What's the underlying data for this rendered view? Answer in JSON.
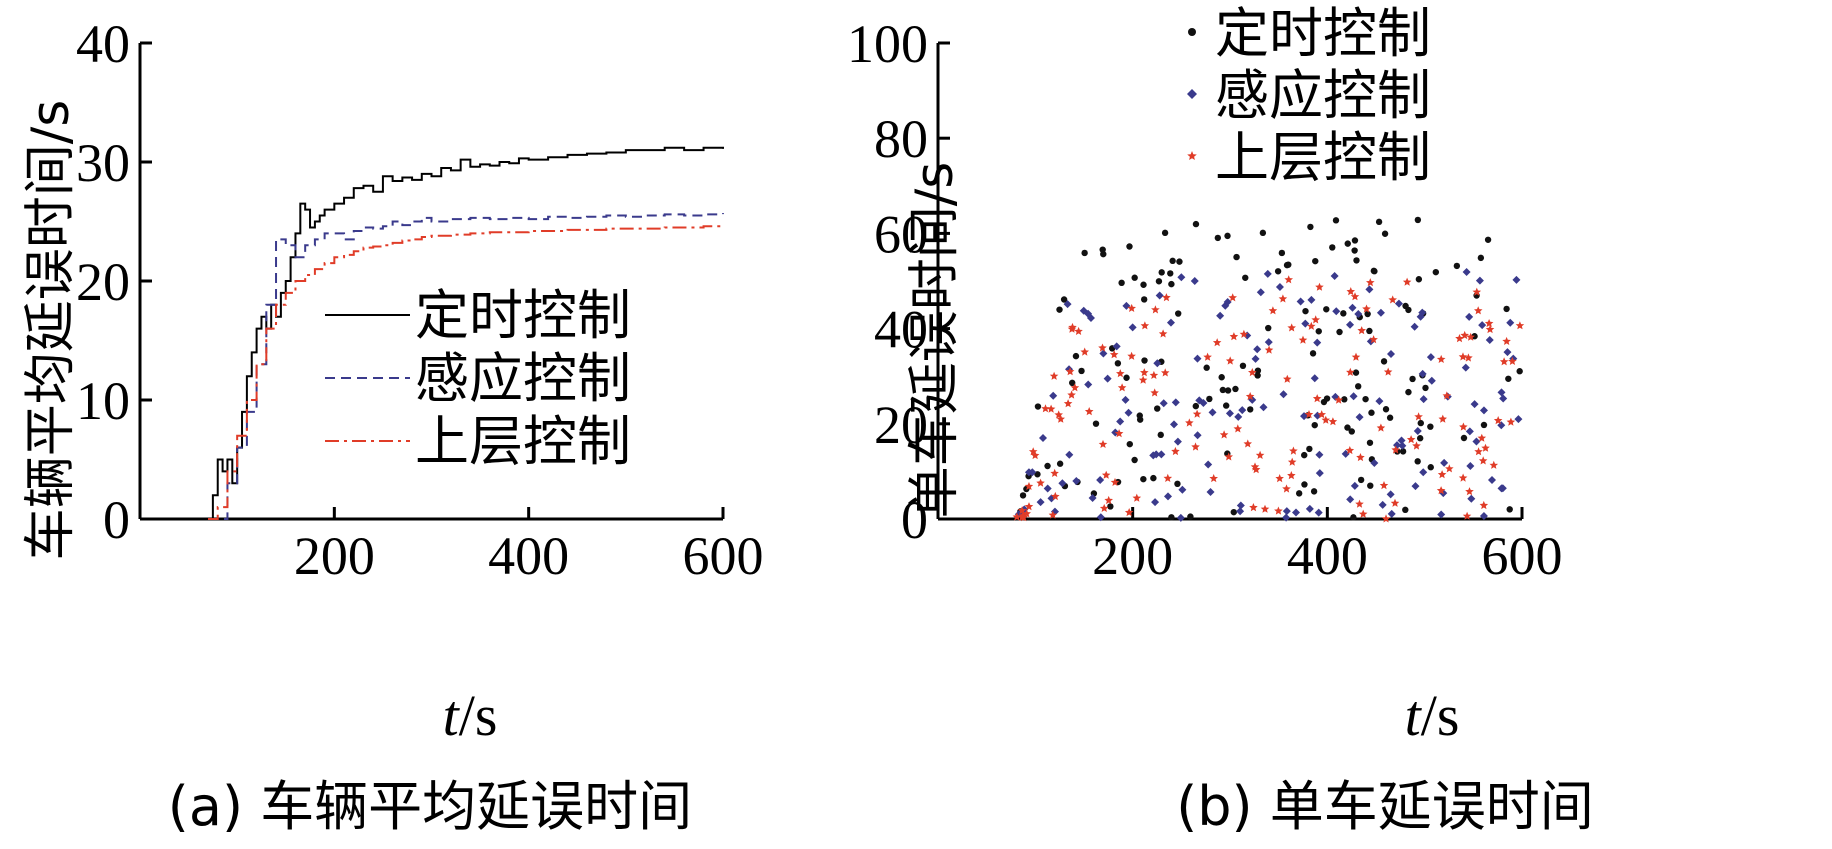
{
  "chart_data": [
    {
      "id": "a",
      "type": "line",
      "caption": "(a) 车辆平均延误时间",
      "xlabel_italic": "t",
      "xlabel_unit": "/s",
      "ylabel": "车辆平均延误时间/s",
      "xlim": [
        0,
        600
      ],
      "ylim": [
        0,
        40
      ],
      "xticks": [
        200,
        400,
        600
      ],
      "yticks": [
        0,
        10,
        20,
        30,
        40
      ],
      "legend_position": "center-right",
      "series": [
        {
          "name": "定时控制",
          "color": "#000000",
          "style": "solid",
          "x": [
            70,
            75,
            80,
            85,
            90,
            95,
            100,
            105,
            110,
            115,
            120,
            125,
            130,
            135,
            140,
            145,
            150,
            155,
            160,
            165,
            170,
            175,
            180,
            185,
            190,
            200,
            210,
            220,
            230,
            240,
            250,
            260,
            270,
            280,
            290,
            300,
            310,
            320,
            330,
            340,
            350,
            360,
            370,
            380,
            390,
            400,
            420,
            440,
            460,
            480,
            500,
            520,
            540,
            560,
            580,
            600
          ],
          "y": [
            0,
            2,
            5,
            4,
            5,
            3,
            6,
            9,
            12,
            14,
            16,
            17,
            16,
            18,
            17,
            19,
            20,
            22,
            24,
            26.5,
            26,
            24.5,
            25,
            25.5,
            26,
            26.5,
            27,
            27.8,
            28,
            27.5,
            28.8,
            28.4,
            28.7,
            28.5,
            29,
            28.8,
            29.5,
            29.3,
            30.2,
            29.6,
            29.8,
            29.7,
            30,
            29.9,
            30.3,
            30.2,
            30.4,
            30.6,
            30.7,
            30.8,
            31,
            31,
            31.2,
            31,
            31.2,
            31.1
          ]
        },
        {
          "name": "感应控制",
          "color": "#3a3a8c",
          "style": "dashed",
          "x": [
            70,
            80,
            90,
            100,
            110,
            120,
            130,
            140,
            150,
            160,
            170,
            180,
            190,
            200,
            210,
            220,
            230,
            240,
            250,
            260,
            270,
            280,
            290,
            300,
            320,
            340,
            360,
            380,
            400,
            420,
            440,
            460,
            480,
            500,
            520,
            540,
            560,
            580,
            600
          ],
          "y": [
            0,
            0,
            3,
            6,
            9,
            13,
            18,
            23.5,
            23,
            22,
            23,
            23.5,
            24,
            24,
            23.5,
            24.2,
            24.5,
            24.4,
            24.6,
            25,
            24.7,
            25,
            25.3,
            25,
            25.2,
            25.3,
            25.2,
            25.3,
            25.2,
            25.4,
            25.3,
            25.4,
            25.5,
            25.4,
            25.5,
            25.6,
            25.5,
            25.6,
            25.7
          ]
        },
        {
          "name": "上层控制",
          "color": "#e03c28",
          "style": "dashdot",
          "x": [
            70,
            80,
            90,
            100,
            110,
            120,
            130,
            140,
            150,
            160,
            170,
            180,
            190,
            200,
            210,
            220,
            230,
            240,
            250,
            260,
            270,
            280,
            290,
            300,
            320,
            340,
            360,
            380,
            400,
            420,
            440,
            460,
            480,
            500,
            520,
            540,
            560,
            580,
            600
          ],
          "y": [
            0,
            1,
            4,
            7,
            10,
            13,
            16,
            18,
            19,
            20,
            20.5,
            21,
            21.5,
            22,
            22.2,
            22.5,
            22.8,
            22.9,
            23,
            23.2,
            23.4,
            23.5,
            23.7,
            23.8,
            23.9,
            24,
            24.1,
            24.1,
            24.2,
            24.2,
            24.3,
            24.3,
            24.4,
            24.4,
            24.4,
            24.5,
            24.5,
            24.6,
            24.6
          ]
        }
      ]
    },
    {
      "id": "b",
      "type": "scatter",
      "caption": "(b) 单车延误时间",
      "xlabel_italic": "t",
      "xlabel_unit": "/s",
      "ylabel": "单车延误时间/s",
      "xlim": [
        0,
        600
      ],
      "ylim": [
        0,
        100
      ],
      "xticks": [
        200,
        400,
        600
      ],
      "yticks": [
        0,
        20,
        40,
        60,
        80,
        100
      ],
      "legend_position": "top-right",
      "x_range_points": [
        80,
        600
      ],
      "series": [
        {
          "name": "定时控制",
          "color": "#111111",
          "marker": "dot",
          "count": 150,
          "max": 63
        },
        {
          "name": "感应控制",
          "color": "#3a3a8c",
          "marker": "diamond",
          "count": 150,
          "max": 52
        },
        {
          "name": "上层控制",
          "color": "#e03c28",
          "marker": "star",
          "count": 150,
          "max": 52
        }
      ]
    }
  ]
}
